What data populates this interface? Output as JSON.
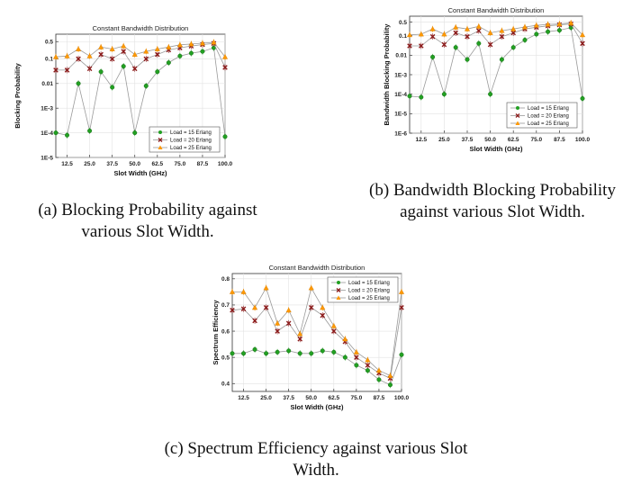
{
  "captions": [
    "(a) Blocking Probability against various Slot Width.",
    "(b) Bandwidth Blocking Probability against various Slot Width.",
    "(c) Spectrum Efficiency against various Slot Width."
  ],
  "colors": {
    "load15": "#22a022",
    "load20": "#8b1a1a",
    "load25": "#ff9900",
    "connector": "#9a9a9a"
  },
  "chart_data": [
    {
      "type": "line",
      "title": "Constant Bandwidth Distribution",
      "xlabel": "Slot Width (GHz)",
      "ylabel": "Blocking Probability",
      "yscale": "log",
      "xlim": [
        6.25,
        100
      ],
      "ylim": [
        1e-05,
        1
      ],
      "x_ticks": [
        "12.5",
        "25.0",
        "37.5",
        "50.0",
        "62.5",
        "75.0",
        "87.5",
        "100.0"
      ],
      "y_ticks": [
        "0.5",
        "0.1",
        "0.01",
        "1E-3",
        "1E-4",
        "1E-5"
      ],
      "legend": {
        "position": "bottom-right",
        "entries": [
          "Load = 15 Erlang",
          "Load = 20 Erlang",
          "Load = 25 Erlang"
        ]
      },
      "x": [
        6.25,
        12.5,
        18.75,
        25,
        31.25,
        37.5,
        43.75,
        50,
        56.25,
        62.5,
        68.75,
        75,
        81.25,
        87.5,
        93.75,
        100
      ],
      "series": [
        {
          "name": "Load = 15 Erlang",
          "values": [
            0.0001,
            8e-05,
            0.01,
            0.00012,
            0.03,
            0.007,
            0.05,
            0.0001,
            0.008,
            0.03,
            0.07,
            0.13,
            0.17,
            0.2,
            0.28,
            7e-05
          ]
        },
        {
          "name": "Load = 20 Erlang",
          "values": [
            0.035,
            0.035,
            0.1,
            0.04,
            0.15,
            0.1,
            0.2,
            0.04,
            0.1,
            0.15,
            0.23,
            0.28,
            0.33,
            0.38,
            0.42,
            0.045
          ]
        },
        {
          "name": "Load = 25 Erlang",
          "values": [
            0.12,
            0.13,
            0.25,
            0.13,
            0.3,
            0.25,
            0.33,
            0.15,
            0.2,
            0.25,
            0.3,
            0.37,
            0.4,
            0.43,
            0.47,
            0.12
          ]
        }
      ]
    },
    {
      "type": "line",
      "title": "Constant Bandwidth Distribution",
      "xlabel": "Slot Width (GHz)",
      "ylabel": "Bandwidth Blocking Probability",
      "yscale": "log",
      "xlim": [
        6.25,
        100
      ],
      "ylim": [
        1e-06,
        1
      ],
      "x_ticks": [
        "12.5",
        "25.0",
        "37.5",
        "50.0",
        "62.5",
        "75.0",
        "87.5",
        "100.0"
      ],
      "y_ticks": [
        "0.5",
        "0.1",
        "0.01",
        "1E-3",
        "1E-4",
        "1E-5",
        "1E-6"
      ],
      "legend": {
        "position": "bottom-right",
        "entries": [
          "Load = 15 Erlang",
          "Load = 20 Erlang",
          "Load = 25 Erlang"
        ]
      },
      "x": [
        6.25,
        12.5,
        18.75,
        25,
        31.25,
        37.5,
        43.75,
        50,
        56.25,
        62.5,
        68.75,
        75,
        81.25,
        87.5,
        93.75,
        100
      ],
      "series": [
        {
          "name": "Load = 15 Erlang",
          "values": [
            8e-05,
            7e-05,
            0.008,
            0.0001,
            0.025,
            0.006,
            0.04,
            0.0001,
            0.006,
            0.025,
            0.06,
            0.12,
            0.16,
            0.19,
            0.26,
            6e-05
          ]
        },
        {
          "name": "Load = 20 Erlang",
          "values": [
            0.03,
            0.03,
            0.09,
            0.035,
            0.14,
            0.09,
            0.18,
            0.035,
            0.09,
            0.14,
            0.22,
            0.27,
            0.32,
            0.36,
            0.4,
            0.04
          ]
        },
        {
          "name": "Load = 25 Erlang",
          "values": [
            0.11,
            0.12,
            0.22,
            0.12,
            0.27,
            0.22,
            0.3,
            0.14,
            0.18,
            0.22,
            0.28,
            0.34,
            0.38,
            0.4,
            0.45,
            0.11
          ]
        }
      ]
    },
    {
      "type": "line",
      "title": "Constant Bandwidth Distribution",
      "xlabel": "Slot Width (GHz)",
      "ylabel": "Spectrum Efficiency",
      "yscale": "linear",
      "xlim": [
        6.25,
        100
      ],
      "ylim": [
        0.37,
        0.82
      ],
      "x_ticks": [
        "12.5",
        "25.0",
        "37.5",
        "50.0",
        "62.5",
        "75.0",
        "87.5",
        "100.0"
      ],
      "y_ticks": [
        "0.8",
        "0.7",
        "0.6",
        "0.5",
        "0.4"
      ],
      "legend": {
        "position": "top-right",
        "entries": [
          "Load = 15 Erlang",
          "Load = 20 Erlang",
          "Load = 25 Erlang"
        ]
      },
      "x": [
        6.25,
        12.5,
        18.75,
        25,
        31.25,
        37.5,
        43.75,
        50,
        56.25,
        62.5,
        68.75,
        75,
        81.25,
        87.5,
        93.75,
        100
      ],
      "series": [
        {
          "name": "Load = 15 Erlang",
          "values": [
            0.515,
            0.515,
            0.53,
            0.515,
            0.52,
            0.525,
            0.515,
            0.515,
            0.525,
            0.52,
            0.5,
            0.47,
            0.45,
            0.415,
            0.395,
            0.51
          ]
        },
        {
          "name": "Load = 20 Erlang",
          "values": [
            0.68,
            0.685,
            0.64,
            0.69,
            0.6,
            0.63,
            0.57,
            0.69,
            0.66,
            0.6,
            0.56,
            0.5,
            0.47,
            0.44,
            0.42,
            0.69
          ]
        },
        {
          "name": "Load = 25 Erlang",
          "values": [
            0.75,
            0.75,
            0.69,
            0.765,
            0.63,
            0.68,
            0.59,
            0.765,
            0.69,
            0.62,
            0.57,
            0.52,
            0.49,
            0.45,
            0.43,
            0.75
          ]
        }
      ]
    }
  ]
}
